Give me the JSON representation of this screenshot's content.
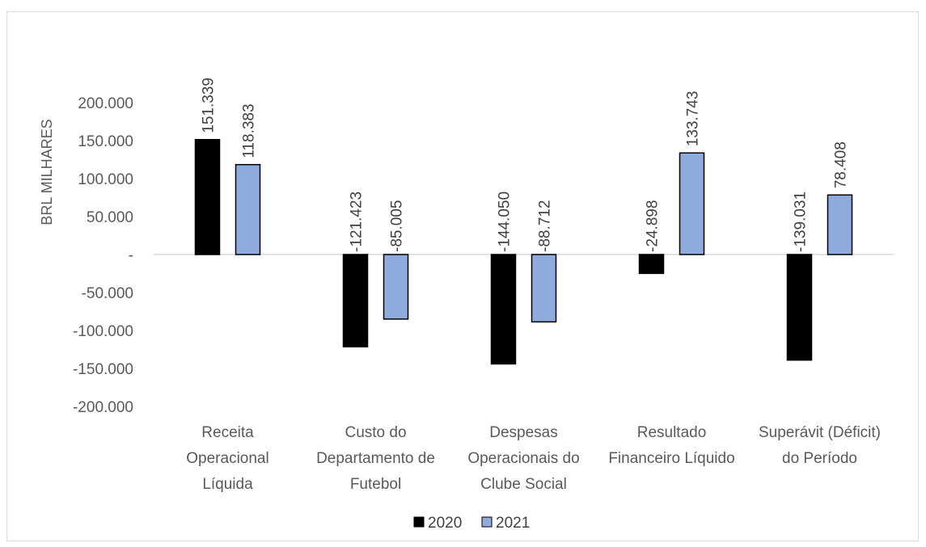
{
  "chart_data": {
    "type": "bar",
    "ylabel": "BRL MILHARES",
    "ylim": [
      -200000,
      200000
    ],
    "ytick_values": [
      200000,
      150000,
      100000,
      50000,
      0,
      -50000,
      -100000,
      -150000,
      -200000
    ],
    "ytick_labels": [
      "200.000",
      "150.000",
      "100.000",
      "50.000",
      "-",
      "-50.000",
      "-100.000",
      "-150.000",
      "-200.000"
    ],
    "categories": [
      [
        "Receita",
        "Operacional",
        "Líquida"
      ],
      [
        "Custo do",
        "Departamento de",
        "Futebol"
      ],
      [
        "Despesas",
        "Operacionais do",
        "Clube Social"
      ],
      [
        "Resultado",
        "Financeiro Líquido"
      ],
      [
        "Superávit (Déficit)",
        "do Período"
      ]
    ],
    "series": [
      {
        "name": "2020",
        "color": "#000000",
        "values": [
          151339,
          -121423,
          -144050,
          -24898,
          -139031
        ],
        "labels": [
          "151.339",
          "-121.423",
          "-144.050",
          "-24.898",
          "-139.031"
        ]
      },
      {
        "name": "2021",
        "color": "#8faadc",
        "values": [
          118383,
          -85005,
          -88712,
          133743,
          78408
        ],
        "labels": [
          "118.383",
          "-85.005",
          "-88.712",
          "133.743",
          "78.408"
        ]
      }
    ],
    "grid": false,
    "legend_position": "bottom"
  }
}
